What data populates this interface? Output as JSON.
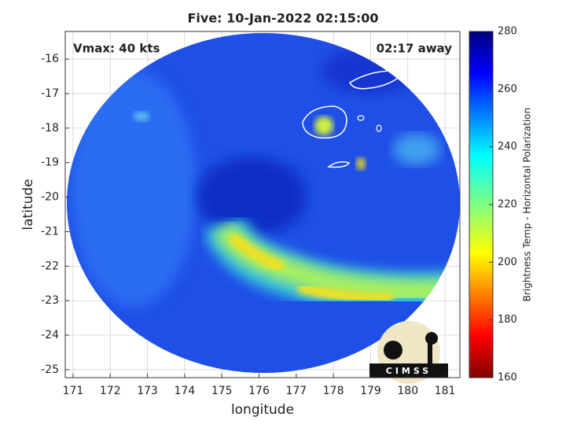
{
  "chart_data": {
    "type": "image",
    "title": "Five: 10-Jan-2022 02:15:00",
    "annotations": [
      "Vmax: 40 kts",
      "02:17 away"
    ],
    "xlabel": "longitude",
    "ylabel": "latitude",
    "xlim": [
      170.79,
      181.4
    ],
    "ylim": [
      -25.23,
      -15.2
    ],
    "xticks": [
      171,
      172,
      173,
      174,
      175,
      176,
      177,
      178,
      179,
      180,
      181
    ],
    "yticks": [
      -25,
      -24,
      -23,
      -22,
      -21,
      -20,
      -19,
      -18,
      -17,
      -16
    ],
    "grid": true,
    "colorbar": {
      "label": "Brightness Temp - Horizontal Polarization",
      "clim": [
        160,
        280
      ],
      "ticks": [
        160,
        180,
        200,
        220,
        240,
        260,
        280
      ],
      "colormap": "jet"
    },
    "logo": "CIMSS"
  }
}
